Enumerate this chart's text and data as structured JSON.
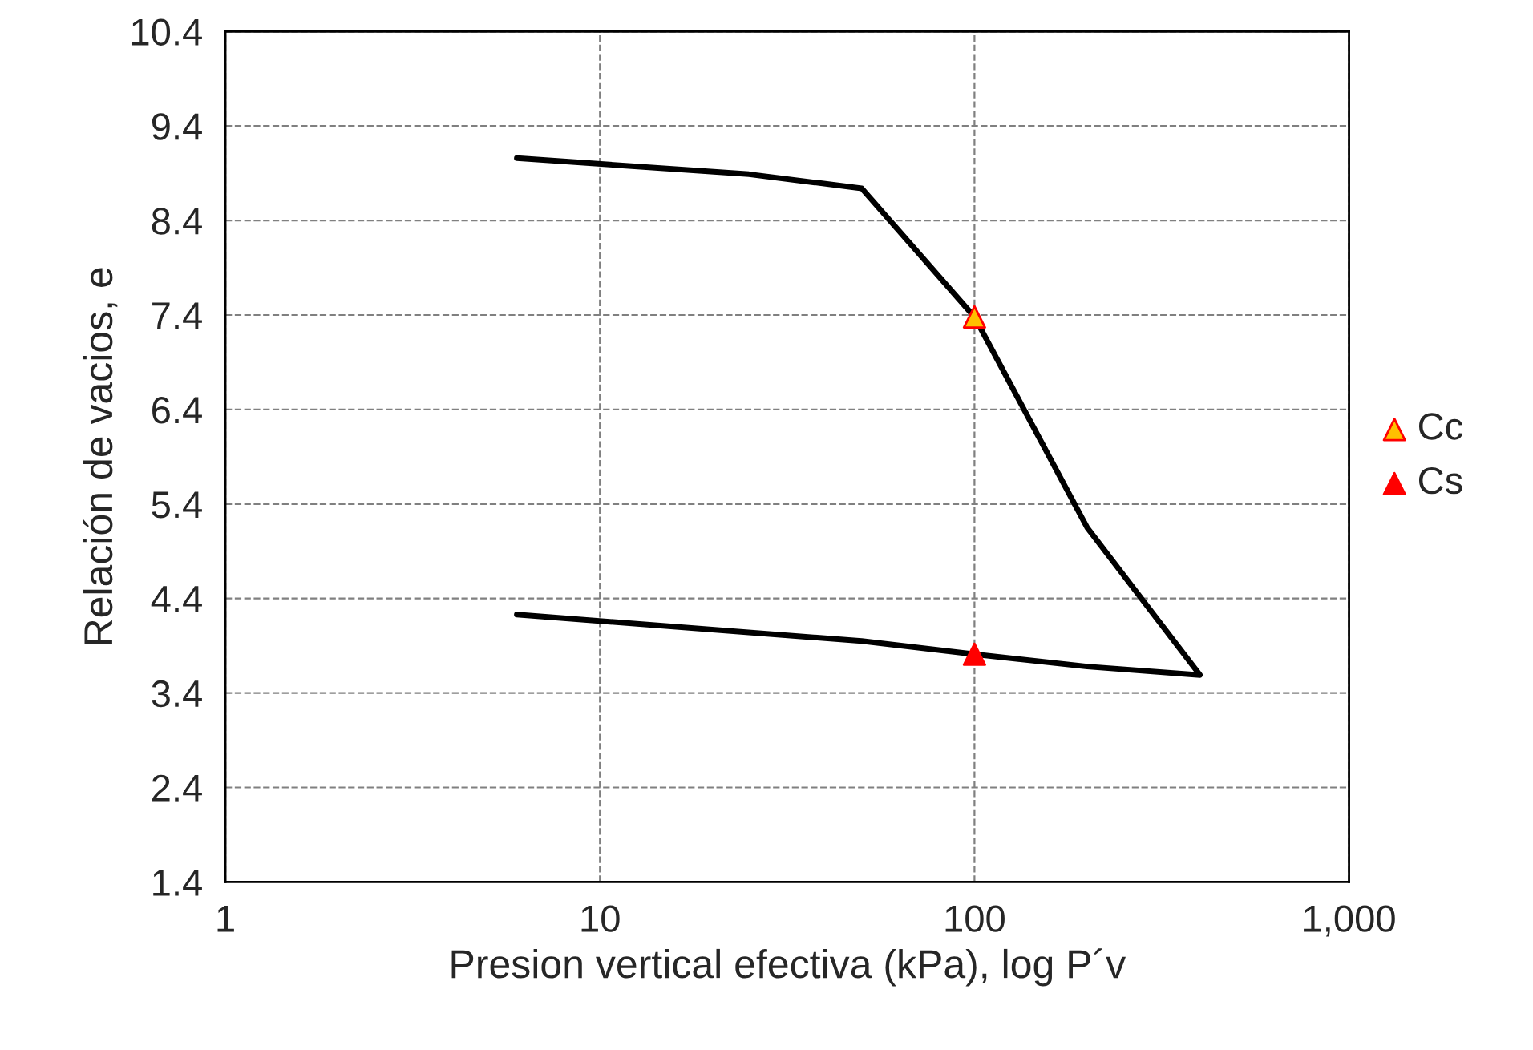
{
  "chart_data": {
    "type": "line",
    "xlabel": "Presion vertical efectiva (kPa), log P´v",
    "ylabel": "Relación de vacios, e",
    "log": "x",
    "grid": true,
    "legend": "right",
    "xlim": [
      1,
      1000
    ],
    "xticks": [
      1,
      10,
      100,
      {
        "value": 1000,
        "label": "1,000"
      }
    ],
    "ylim": [
      1.4,
      10.4
    ],
    "yticks": [
      1.4,
      2.4,
      3.4,
      4.4,
      5.4,
      6.4,
      7.4,
      8.4,
      9.4,
      10.4
    ],
    "series": [
      {
        "color": "#000000",
        "marker": "none",
        "line_style": "solid",
        "x": [
          6,
          25,
          50,
          100,
          200,
          400,
          200,
          100,
          50,
          6
        ],
        "values": [
          9.06,
          8.89,
          8.74,
          7.38,
          5.15,
          3.59,
          3.68,
          3.81,
          3.95,
          4.23
        ]
      },
      {
        "type": "scatter",
        "name": "Cc",
        "color": "#ffc000",
        "marker": "triangle",
        "x": [
          100
        ],
        "values": [
          7.38
        ]
      },
      {
        "type": "scatter",
        "name": "Cs",
        "color": "#ff0000",
        "marker": "triangle",
        "x": [
          100
        ],
        "values": [
          3.81
        ]
      }
    ]
  }
}
